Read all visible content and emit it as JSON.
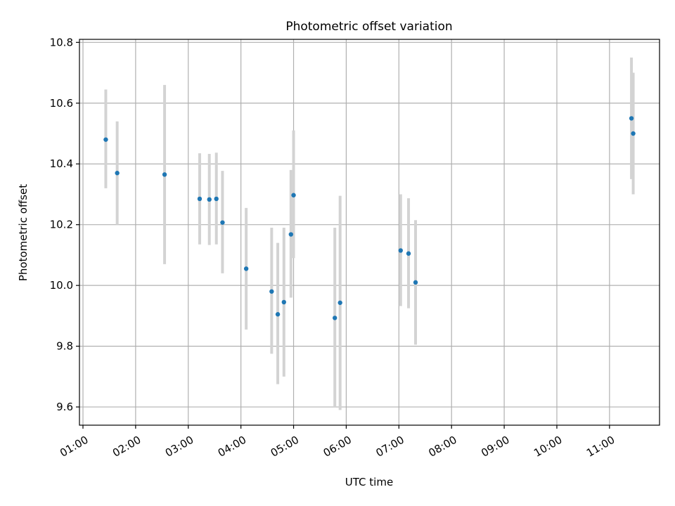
{
  "chart_data": {
    "type": "scatter",
    "title": "Photometric offset variation",
    "xlabel": "UTC time",
    "ylabel": "Photometric offset",
    "xlim": [
      "00:56",
      "11:57"
    ],
    "ylim": [
      9.54,
      10.81
    ],
    "grid": true,
    "x_ticks": [
      "01:00",
      "02:00",
      "03:00",
      "04:00",
      "05:00",
      "06:00",
      "07:00",
      "08:00",
      "09:00",
      "10:00",
      "11:00"
    ],
    "y_ticks": [
      9.6,
      9.8,
      10.0,
      10.2,
      10.4,
      10.6,
      10.8
    ],
    "y_tick_labels": [
      "9.6",
      "9.8",
      "10.0",
      "10.2",
      "10.4",
      "10.6",
      "10.8"
    ],
    "colors": {
      "point": "#1f77b4",
      "errorbar": "#d3d3d3",
      "grid": "#b0b0b0"
    },
    "series": [
      {
        "points": [
          {
            "x": "01:26",
            "y": 10.48,
            "yerr": [
              10.32,
              10.645
            ]
          },
          {
            "x": "01:39",
            "y": 10.37,
            "yerr": [
              10.2,
              10.54
            ]
          },
          {
            "x": "02:33",
            "y": 10.365,
            "yerr": [
              10.07,
              10.66
            ]
          },
          {
            "x": "03:13",
            "y": 10.285,
            "yerr": [
              10.135,
              10.435
            ]
          },
          {
            "x": "03:24",
            "y": 10.283,
            "yerr": [
              10.133,
              10.433
            ]
          },
          {
            "x": "03:32",
            "y": 10.285,
            "yerr": [
              10.135,
              10.437
            ]
          },
          {
            "x": "03:39",
            "y": 10.207,
            "yerr": [
              10.04,
              10.377
            ]
          },
          {
            "x": "04:06",
            "y": 10.055,
            "yerr": [
              9.855,
              10.255
            ]
          },
          {
            "x": "04:35",
            "y": 9.98,
            "yerr": [
              9.775,
              10.19
            ]
          },
          {
            "x": "04:42",
            "y": 9.905,
            "yerr": [
              9.675,
              10.14
            ]
          },
          {
            "x": "04:49",
            "y": 9.945,
            "yerr": [
              9.7,
              10.19
            ]
          },
          {
            "x": "04:57",
            "y": 10.168,
            "yerr": [
              9.96,
              10.38
            ]
          },
          {
            "x": "05:00",
            "y": 10.297,
            "yerr": [
              10.09,
              10.51
            ]
          },
          {
            "x": "05:47",
            "y": 9.893,
            "yerr": [
              9.6,
              10.19
            ]
          },
          {
            "x": "05:53",
            "y": 9.943,
            "yerr": [
              9.59,
              10.295
            ]
          },
          {
            "x": "07:02",
            "y": 10.115,
            "yerr": [
              9.932,
              10.3
            ]
          },
          {
            "x": "07:11",
            "y": 10.105,
            "yerr": [
              9.925,
              10.287
            ]
          },
          {
            "x": "07:19",
            "y": 10.01,
            "yerr": [
              9.805,
              10.215
            ]
          },
          {
            "x": "11:25",
            "y": 10.55,
            "yerr": [
              10.35,
              10.75
            ]
          },
          {
            "x": "11:27",
            "y": 10.5,
            "yerr": [
              10.3,
              10.7
            ]
          }
        ]
      }
    ]
  }
}
